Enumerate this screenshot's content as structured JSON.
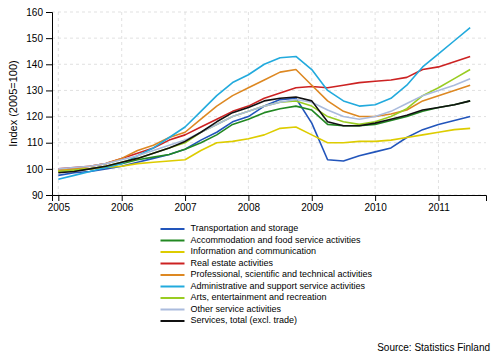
{
  "chart_data": {
    "type": "line",
    "ylabel": "Index (2005=100)",
    "annotations": [
      "Source: Statistics Finland"
    ],
    "xlim": [
      2004.9,
      2011.75
    ],
    "ylim": [
      90,
      160
    ],
    "xticks": [
      2005,
      2006,
      2007,
      2008,
      2009,
      2010,
      2011
    ],
    "yticks": [
      90,
      100,
      110,
      120,
      130,
      140,
      150,
      160
    ],
    "grid": true,
    "legend": "bottom",
    "x": [
      2005.0,
      2005.25,
      2005.5,
      2005.75,
      2006.0,
      2006.25,
      2006.5,
      2006.75,
      2007.0,
      2007.25,
      2007.5,
      2007.75,
      2008.0,
      2008.25,
      2008.5,
      2008.75,
      2009.0,
      2009.25,
      2009.5,
      2009.75,
      2010.0,
      2010.25,
      2010.5,
      2010.75,
      2011.0,
      2011.25,
      2011.5
    ],
    "series": [
      {
        "name": "Transportation and storage",
        "color": "#2255bb",
        "values": [
          97.5,
          98.5,
          99.0,
          100.0,
          101.0,
          102.5,
          104.0,
          105.5,
          107.5,
          111.0,
          114.0,
          118.0,
          120.0,
          124.0,
          126.5,
          127.0,
          117.5,
          103.5,
          103.0,
          105.0,
          106.5,
          108.0,
          112.0,
          115.0,
          117.0,
          118.5,
          120.0
        ]
      },
      {
        "name": "Accommodation and food service activities",
        "color": "#228822",
        "values": [
          99.0,
          99.5,
          100.0,
          101.0,
          102.0,
          103.5,
          104.5,
          105.5,
          107.5,
          110.0,
          113.0,
          117.0,
          119.0,
          121.5,
          123.0,
          124.0,
          122.5,
          117.0,
          116.5,
          116.5,
          117.0,
          118.5,
          120.0,
          122.0,
          123.5,
          124.5,
          126.0
        ]
      },
      {
        "name": "Information and communication",
        "color": "#ddcc00",
        "values": [
          99.5,
          100.0,
          100.0,
          100.5,
          101.0,
          102.0,
          102.5,
          103.0,
          103.5,
          107.0,
          110.0,
          110.5,
          111.5,
          113.0,
          115.5,
          116.0,
          113.0,
          110.0,
          110.0,
          110.5,
          110.5,
          111.0,
          112.0,
          113.0,
          114.0,
          115.0,
          115.5
        ]
      },
      {
        "name": "Real estate activities",
        "color": "#cc2222",
        "values": [
          100.0,
          100.5,
          101.0,
          102.0,
          104.0,
          106.0,
          108.0,
          111.0,
          113.0,
          116.0,
          119.0,
          122.0,
          124.0,
          127.0,
          129.0,
          131.0,
          131.5,
          131.0,
          132.0,
          133.0,
          133.5,
          134.0,
          135.0,
          138.0,
          139.0,
          141.0,
          143.0
        ]
      },
      {
        "name": "Professional, scientific and technical activities",
        "color": "#dd8822",
        "values": [
          99.0,
          100.0,
          101.0,
          102.0,
          104.0,
          107.0,
          109.0,
          112.0,
          114.0,
          119.0,
          124.0,
          128.0,
          131.0,
          134.0,
          137.0,
          138.0,
          132.0,
          126.0,
          122.0,
          120.0,
          120.0,
          121.0,
          122.5,
          126.0,
          128.0,
          130.0,
          132.0
        ]
      },
      {
        "name": "Administrative and support service activities",
        "color": "#22aadd",
        "values": [
          96.0,
          97.5,
          99.0,
          100.5,
          102.0,
          105.0,
          108.0,
          112.0,
          116.0,
          122.0,
          128.0,
          133.0,
          136.0,
          140.0,
          142.5,
          143.0,
          138.0,
          130.0,
          126.0,
          124.0,
          124.5,
          127.0,
          132.0,
          139.0,
          144.0,
          149.0,
          154.0
        ]
      },
      {
        "name": "Arts, entertainment and recreation",
        "color": "#99cc22",
        "values": [
          99.0,
          99.5,
          100.0,
          101.0,
          102.5,
          104.0,
          106.0,
          108.0,
          110.0,
          114.0,
          117.0,
          120.0,
          122.0,
          124.0,
          125.5,
          126.0,
          124.0,
          120.0,
          118.0,
          117.0,
          118.0,
          120.0,
          123.0,
          128.0,
          131.0,
          134.5,
          138.0
        ]
      },
      {
        "name": "Other service activities",
        "color": "#aabbdd",
        "values": [
          100.0,
          100.5,
          101.0,
          102.0,
          103.5,
          105.0,
          107.0,
          109.0,
          111.0,
          114.0,
          117.0,
          120.0,
          122.0,
          124.0,
          125.5,
          126.5,
          125.5,
          122.5,
          120.0,
          119.0,
          120.0,
          122.0,
          125.0,
          128.0,
          130.0,
          132.0,
          134.5
        ]
      },
      {
        "name": "Services, total (excl. trade)",
        "color": "#111111",
        "values": [
          98.5,
          99.0,
          100.0,
          101.0,
          102.5,
          104.0,
          106.0,
          108.0,
          110.5,
          114.0,
          118.0,
          121.5,
          123.5,
          126.0,
          127.0,
          127.5,
          126.0,
          118.0,
          116.5,
          116.5,
          117.5,
          119.0,
          120.5,
          122.5,
          123.5,
          124.5,
          126.0
        ]
      }
    ]
  }
}
